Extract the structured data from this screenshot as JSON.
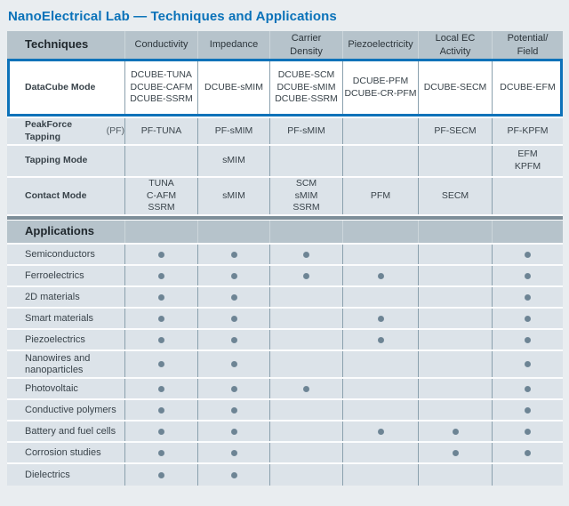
{
  "title": "NanoElectrical Lab — Techniques and Applications",
  "header": {
    "techniques_label": "Techniques",
    "columns": [
      "Conductivity",
      "Impedance",
      "Carrier\nDensity",
      "Piezoelectricity",
      "Local EC\nActivity",
      "Potential/\nField"
    ]
  },
  "techniques": {
    "rows": [
      {
        "label": "DataCube Mode",
        "note": "",
        "cells": [
          "DCUBE-TUNA\nDCUBE-CAFM\nDCUBE-SSRM",
          "DCUBE-sMIM",
          "DCUBE-SCM\nDCUBE-sMIM\nDCUBE-SSRM",
          "DCUBE-PFM\nDCUBE-CR-PFM",
          "DCUBE-SECM",
          "DCUBE-EFM"
        ]
      },
      {
        "label": "PeakForce Tapping",
        "note": "(PF)",
        "cells": [
          "PF-TUNA",
          "PF-sMIM",
          "PF-sMIM",
          "",
          "PF-SECM",
          "PF-KPFM"
        ]
      },
      {
        "label": "Tapping Mode",
        "note": "",
        "cells": [
          "",
          "sMIM",
          "",
          "",
          "",
          "EFM\nKPFM"
        ]
      },
      {
        "label": "Contact Mode",
        "note": "",
        "cells": [
          "TUNA\nC-AFM\nSSRM",
          "sMIM",
          "SCM\nsMIM\nSSRM",
          "PFM",
          "SECM",
          ""
        ]
      }
    ]
  },
  "apps": {
    "header_label": "Applications",
    "rows": [
      {
        "label": "Semiconductors",
        "dots": [
          1,
          1,
          1,
          0,
          0,
          1
        ]
      },
      {
        "label": "Ferroelectrics",
        "dots": [
          1,
          1,
          1,
          1,
          0,
          1
        ]
      },
      {
        "label": "2D materials",
        "dots": [
          1,
          1,
          0,
          0,
          0,
          1
        ]
      },
      {
        "label": "Smart materials",
        "dots": [
          1,
          1,
          0,
          1,
          0,
          1
        ]
      },
      {
        "label": "Piezoelectrics",
        "dots": [
          1,
          1,
          0,
          1,
          0,
          1
        ]
      },
      {
        "label": "Nanowires and nanoparticles",
        "dots": [
          1,
          1,
          0,
          0,
          0,
          1
        ]
      },
      {
        "label": "Photovoltaic",
        "dots": [
          1,
          1,
          1,
          0,
          0,
          1
        ]
      },
      {
        "label": "Conductive polymers",
        "dots": [
          1,
          1,
          0,
          0,
          0,
          1
        ]
      },
      {
        "label": "Battery and fuel cells",
        "dots": [
          1,
          1,
          0,
          1,
          1,
          1
        ]
      },
      {
        "label": "Corrosion studies",
        "dots": [
          1,
          1,
          0,
          0,
          1,
          1
        ]
      },
      {
        "label": "Dielectrics",
        "dots": [
          1,
          1,
          0,
          0,
          0,
          0
        ]
      }
    ]
  },
  "colors": {
    "accent_blue": "#0d72b9",
    "header_bg": "#b6c3cb",
    "row_bg": "#dce3e9",
    "dot": "#6d8494",
    "divider_dark": "#7d8e99"
  }
}
